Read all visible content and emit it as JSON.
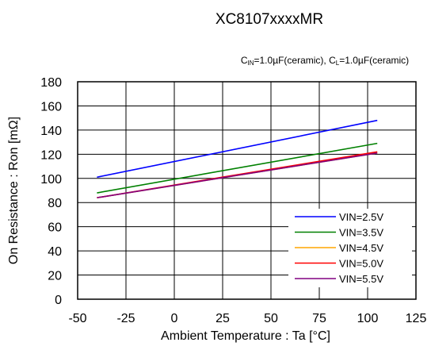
{
  "chart_data": {
    "type": "line",
    "title": "XC8107xxxxMR",
    "subtitle": {
      "prefix1": "C",
      "sub1": "IN",
      "mid": "=1.0µF(ceramic), C",
      "sub2": "L",
      "suffix": "=1.0µF(ceramic)"
    },
    "xlabel": "Ambient Temperature : Ta [°C]",
    "ylabel": "On Resistance : Ron [mΩ]",
    "xlim": [
      -50,
      125
    ],
    "ylim": [
      0,
      180
    ],
    "xticks": [
      "-50",
      "-25",
      "0",
      "25",
      "50",
      "75",
      "100",
      "125"
    ],
    "yticks": [
      "0",
      "20",
      "40",
      "60",
      "80",
      "100",
      "120",
      "140",
      "160",
      "180"
    ],
    "grid": true,
    "legend_position": "bottom-right",
    "series": [
      {
        "name": "VIN=2.5V",
        "color": "#0000ff",
        "x": [
          -40,
          105
        ],
        "y": [
          101,
          148
        ]
      },
      {
        "name": "VIN=3.5V",
        "color": "#008000",
        "x": [
          -40,
          105
        ],
        "y": [
          88,
          129
        ]
      },
      {
        "name": "VIN=4.5V",
        "color": "#ffa500",
        "x": [
          -40,
          105
        ],
        "y": [
          84,
          121
        ]
      },
      {
        "name": "VIN=5.0V",
        "color": "#ff0000",
        "x": [
          -40,
          105
        ],
        "y": [
          84,
          122
        ]
      },
      {
        "name": "VIN=5.5V",
        "color": "#800080",
        "x": [
          -40,
          105
        ],
        "y": [
          84,
          121
        ]
      }
    ]
  }
}
